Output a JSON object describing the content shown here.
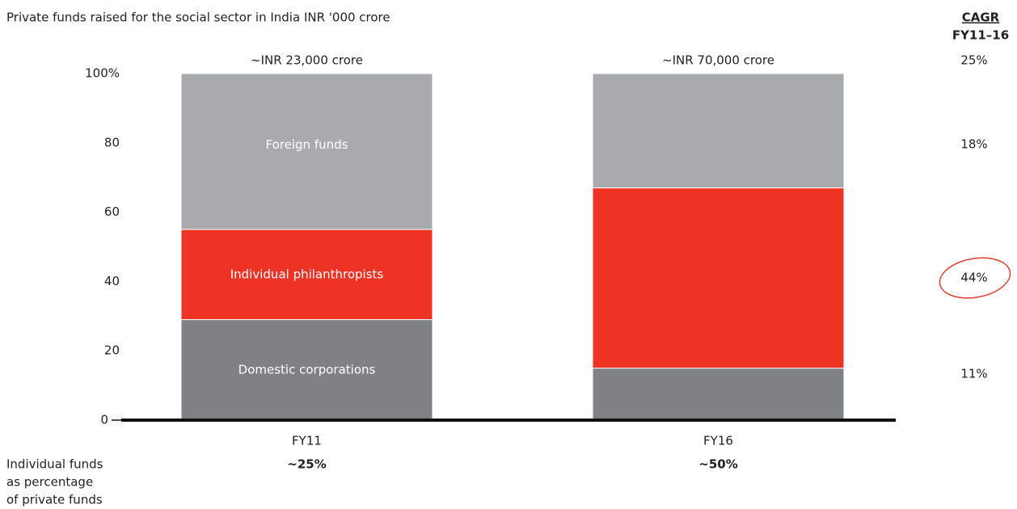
{
  "chart_data": {
    "type": "stacked_bar",
    "title": "Private funds raised for the social sector in India INR '000 crore",
    "categories": [
      "FY11",
      "FY16"
    ],
    "series": [
      {
        "name": "Domestic corporations",
        "color": "#808184",
        "values": [
          29,
          15
        ]
      },
      {
        "name": "Individual philanthropists",
        "color": "#ee3224",
        "values": [
          26,
          52
        ]
      },
      {
        "name": "Foreign funds",
        "color": "#a9aaae",
        "values": [
          45,
          33
        ]
      }
    ],
    "total_labels": [
      "~INR 23,000 crore",
      "~INR 70,000 crore"
    ],
    "ylim": [
      0,
      100
    ],
    "yticks": [
      0,
      20,
      40,
      60,
      80,
      {
        "value": 100,
        "label": "100%"
      }
    ],
    "grid": false,
    "cagr": {
      "title": "CAGR",
      "subtitle": "FY11–16",
      "labels": [
        "25%",
        "18%",
        "44%",
        "11%"
      ]
    },
    "footer": {
      "label_lines": [
        "Individual funds",
        "as percentage",
        "of private funds"
      ],
      "values": [
        "~25%",
        "~50%"
      ]
    }
  }
}
